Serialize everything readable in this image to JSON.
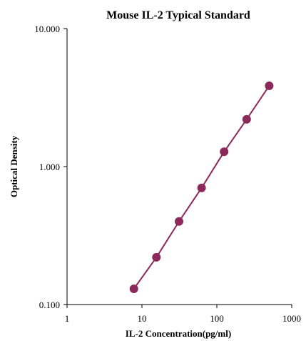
{
  "chart_data": {
    "type": "line",
    "title": "Mouse IL-2 Typical  Standard",
    "xlabel": "IL-2  Concentration(pg/ml)",
    "ylabel": "Optical  Density",
    "x_scale": "log",
    "y_scale": "log",
    "xlim": [
      1,
      1000
    ],
    "ylim": [
      0.1,
      10
    ],
    "x_ticks": [
      "1",
      "10",
      "100",
      "1000"
    ],
    "y_ticks": [
      "0.100",
      "1.000",
      "10.000"
    ],
    "grid": false,
    "series": [
      {
        "color": "#8b2a5a",
        "x": [
          7.8,
          15.6,
          31.25,
          62.5,
          125,
          250,
          500
        ],
        "y": [
          0.13,
          0.22,
          0.4,
          0.7,
          1.28,
          2.2,
          3.85
        ]
      }
    ]
  }
}
